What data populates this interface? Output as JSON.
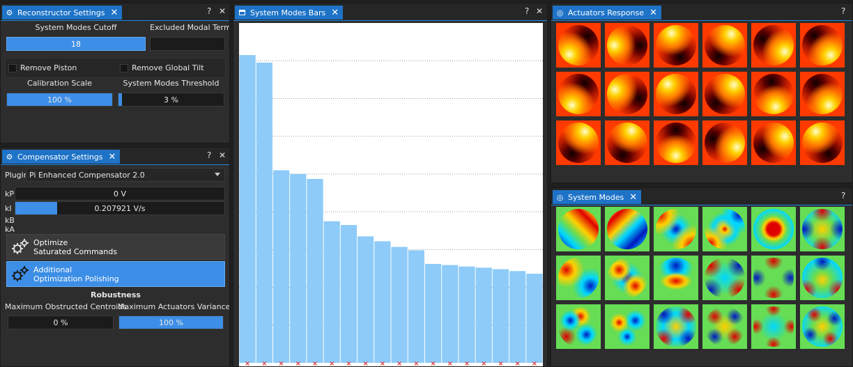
{
  "reconstructor": {
    "title": "Reconstructor Settings",
    "help": "?",
    "close": "✕",
    "modes_cutoff_label": "System Modes Cutoff",
    "modes_cutoff_value": "18",
    "excluded_label": "Excluded Modal Terms",
    "excluded_value": "",
    "remove_piston": "Remove Piston",
    "remove_tilt": "Remove Global Tilt",
    "calibration_label": "Calibration Scale",
    "calibration_value": "100 %",
    "calibration_fraction": 1.0,
    "threshold_label": "System Modes Threshold",
    "threshold_value": "3 %",
    "threshold_fraction": 0.03
  },
  "compensator": {
    "title": "Compensator Settings",
    "help": "?",
    "close": "✕",
    "plugin_label": "Plugin",
    "plugin_value": "Pi Enhanced Compensator 2.0",
    "kp_label": "kP",
    "kp_value": "0 V",
    "kp_fraction": 0.0,
    "ki_label": "kI",
    "ki_value": "0.207921 V/s",
    "ki_fraction": 0.2,
    "kb_label": "kB",
    "ka_label": "kA",
    "optimize_line1": "Optimize",
    "optimize_line2": "Saturated Commands",
    "additional_line1": "Additional",
    "additional_line2": "Optimization Polishing",
    "robustness_label": "Robustness",
    "obstructed_label": "Maximum Obstructed Centroids",
    "obstructed_value": "0 %",
    "obstructed_fraction": 0.0,
    "variance_label": "Maximum Actuators Variance",
    "variance_value": "100 %",
    "variance_fraction": 1.0
  },
  "modes_bars": {
    "title": "System Modes Bars",
    "help": "?",
    "close": "✕",
    "chart_data": {
      "type": "bar",
      "values": [
        0.815,
        0.795,
        0.51,
        0.5,
        0.487,
        0.375,
        0.365,
        0.335,
        0.322,
        0.307,
        0.298,
        0.262,
        0.259,
        0.255,
        0.252,
        0.248,
        0.243,
        0.236
      ],
      "ylim": [
        0,
        0.9
      ],
      "gridlines": [
        0.1,
        0.2,
        0.3,
        0.4,
        0.5,
        0.6,
        0.7,
        0.8
      ],
      "grid": true,
      "bar_color": "#8ecbf8",
      "marker_color": "#e03030"
    }
  },
  "actuators": {
    "title": "Actuators Response",
    "help": "?",
    "colormap": "hot",
    "tiles": [
      {
        "a": 135,
        "c": 0.15
      },
      {
        "a": 180,
        "c": 0.3
      },
      {
        "a": 250,
        "c": 0.2
      },
      {
        "a": 300,
        "c": 0.35
      },
      {
        "a": 30,
        "c": 0.3
      },
      {
        "a": 50,
        "c": 0.2
      },
      {
        "a": 120,
        "c": 0.25
      },
      {
        "a": 200,
        "c": 0.3
      },
      {
        "a": 230,
        "c": 0.25
      },
      {
        "a": 315,
        "c": 0.3
      },
      {
        "a": 80,
        "c": 0.2
      },
      {
        "a": 60,
        "c": 0.2
      },
      {
        "a": 300,
        "c": 0.35
      },
      {
        "a": 290,
        "c": 0.4
      },
      {
        "a": 90,
        "c": 0.2
      },
      {
        "a": 20,
        "c": 0.3
      },
      {
        "a": 330,
        "c": 0.25
      },
      {
        "a": 240,
        "c": 0.25
      }
    ]
  },
  "system_modes": {
    "title": "System Modes",
    "help": "?",
    "close": "✕",
    "colormap": "jet"
  }
}
